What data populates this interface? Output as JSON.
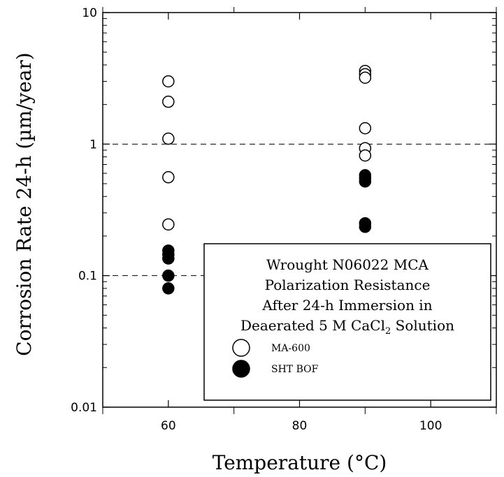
{
  "chart_data": {
    "type": "scatter",
    "title": "",
    "xlabel": "Temperature (°C)",
    "ylabel": "Corrosion Rate 24-h (µm/year)",
    "xlim": [
      50,
      110
    ],
    "ylim": [
      0.01,
      10
    ],
    "yscale": "log",
    "x_ticks": [
      {
        "value": 60,
        "label": "60"
      },
      {
        "value": 80,
        "label": "80"
      },
      {
        "value": 100,
        "label": "100"
      }
    ],
    "y_ticks": [
      {
        "value": 0.01,
        "label": "0.01"
      },
      {
        "value": 0.1,
        "label": "0.1"
      },
      {
        "value": 1,
        "label": "1"
      },
      {
        "value": 10,
        "label": "10"
      }
    ],
    "grid": "dashed horizontal at 0.1, 1, 10",
    "legend": {
      "placement": "bottom-right",
      "lines": [
        "Wrought N06022 MCA",
        "Polarization Resistance",
        "After 24-h Immersion in"
      ],
      "line4_prefix": "Deaerated 5 M CaCl",
      "line4_sub": "2",
      "line4_suffix": " Solution"
    },
    "series": [
      {
        "name": "MA-600",
        "marker": "open-circle",
        "points": [
          {
            "x": 60,
            "y": 3.0
          },
          {
            "x": 60,
            "y": 2.1
          },
          {
            "x": 60,
            "y": 1.1
          },
          {
            "x": 60,
            "y": 0.56
          },
          {
            "x": 60,
            "y": 0.245
          },
          {
            "x": 90,
            "y": 3.6
          },
          {
            "x": 90,
            "y": 3.4
          },
          {
            "x": 90,
            "y": 3.2
          },
          {
            "x": 90,
            "y": 1.32
          },
          {
            "x": 90,
            "y": 0.93
          },
          {
            "x": 90,
            "y": 0.82
          }
        ]
      },
      {
        "name": "SHT BOF",
        "marker": "filled-circle",
        "points": [
          {
            "x": 60,
            "y": 0.155
          },
          {
            "x": 60,
            "y": 0.145
          },
          {
            "x": 60,
            "y": 0.135
          },
          {
            "x": 60,
            "y": 0.1
          },
          {
            "x": 60,
            "y": 0.08
          },
          {
            "x": 90,
            "y": 0.58
          },
          {
            "x": 90,
            "y": 0.55
          },
          {
            "x": 90,
            "y": 0.52
          },
          {
            "x": 90,
            "y": 0.25
          },
          {
            "x": 90,
            "y": 0.235
          }
        ]
      }
    ],
    "colors": {
      "marker": "#000000",
      "background": "#ffffff"
    }
  }
}
